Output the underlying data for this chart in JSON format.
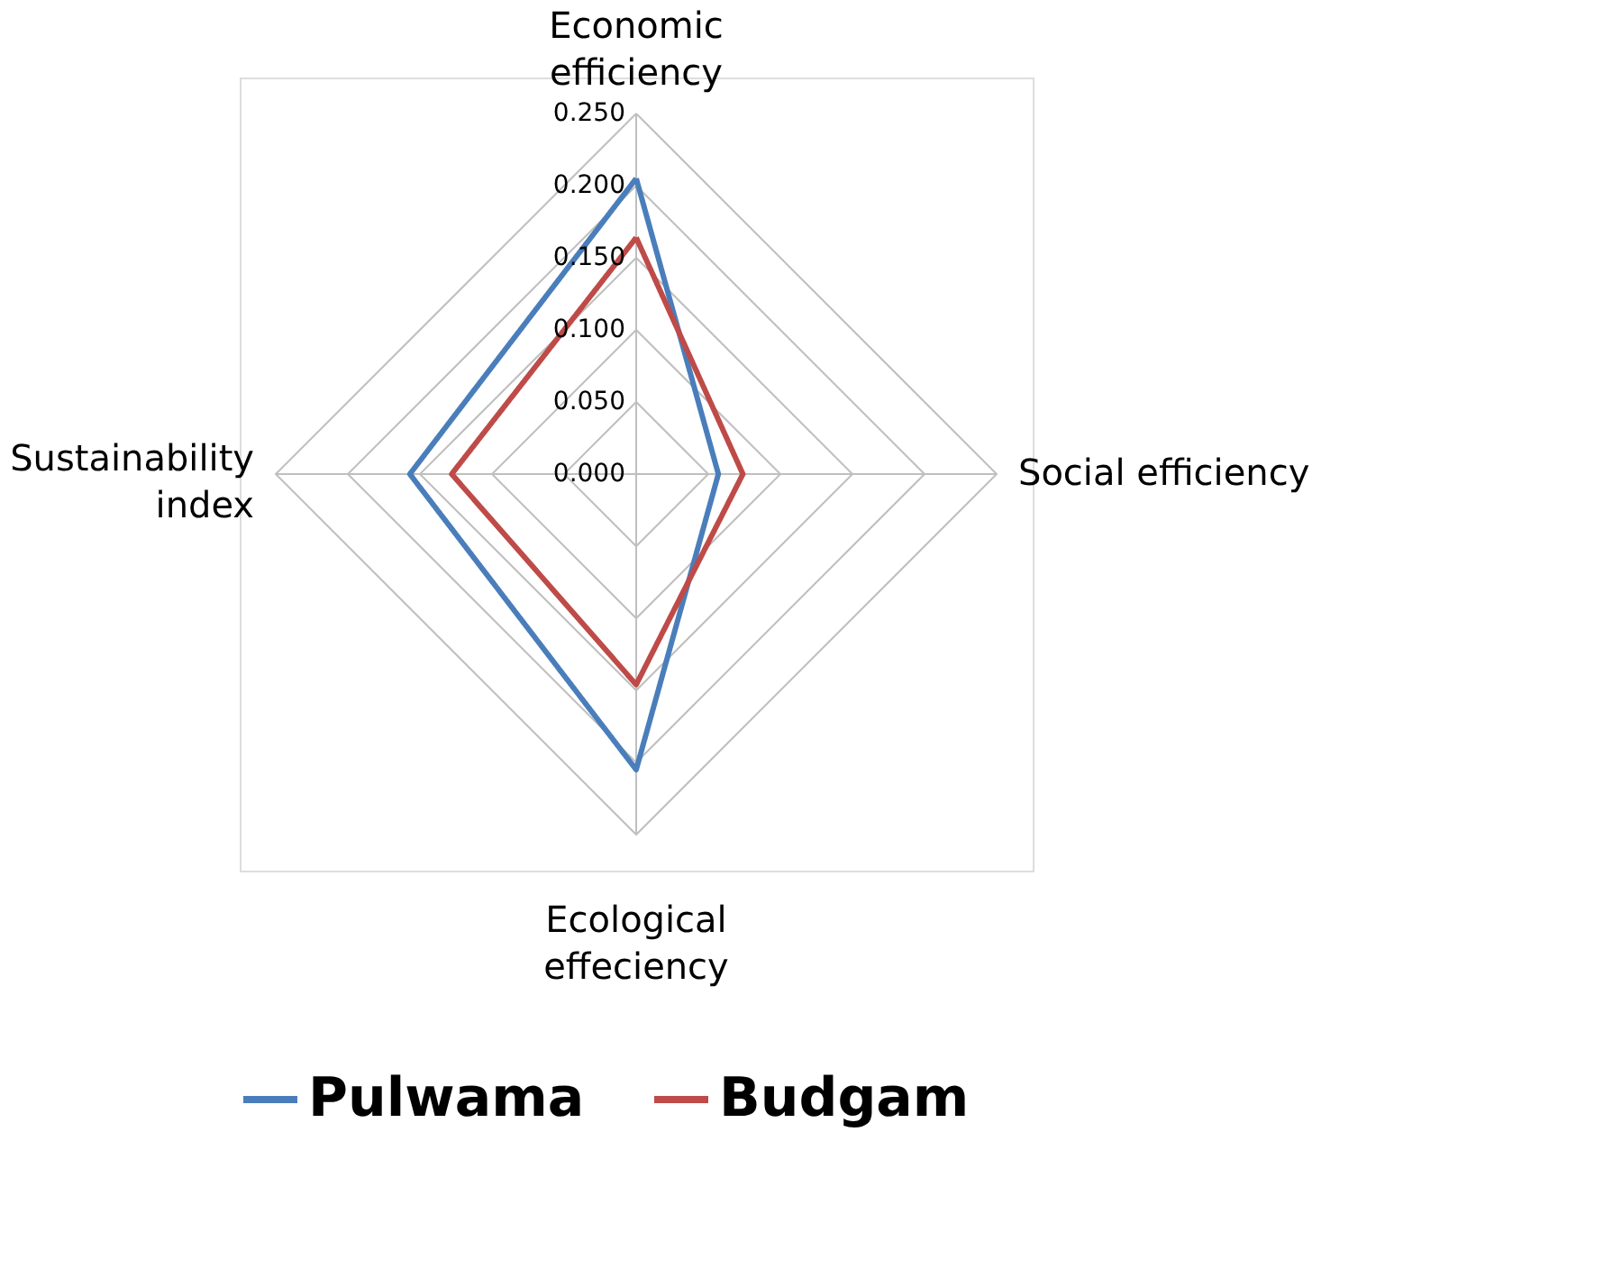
{
  "chart_data": {
    "type": "radar",
    "categories": [
      "Economic efficiency",
      "Social efficiency",
      "Ecological effeciency",
      "Sustainability index"
    ],
    "series": [
      {
        "name": "Pulwama",
        "color": "#4a7ebb",
        "values": [
          0.205,
          0.057,
          0.205,
          0.157
        ]
      },
      {
        "name": "Budgam",
        "color": "#be4b48",
        "values": [
          0.164,
          0.074,
          0.146,
          0.128
        ]
      }
    ],
    "ylim": [
      0,
      0.25
    ],
    "yticks": [
      {
        "value": 0,
        "label": "0.000"
      },
      {
        "value": 0.05,
        "label": "0.050"
      },
      {
        "value": 0.1,
        "label": "0.100"
      },
      {
        "value": 0.15,
        "label": "0.150"
      },
      {
        "value": 0.2,
        "label": "0.200"
      },
      {
        "value": 0.25,
        "label": "0.250"
      }
    ],
    "grid": true,
    "legend": "bottom",
    "marker": "none",
    "line_style": "solid"
  }
}
